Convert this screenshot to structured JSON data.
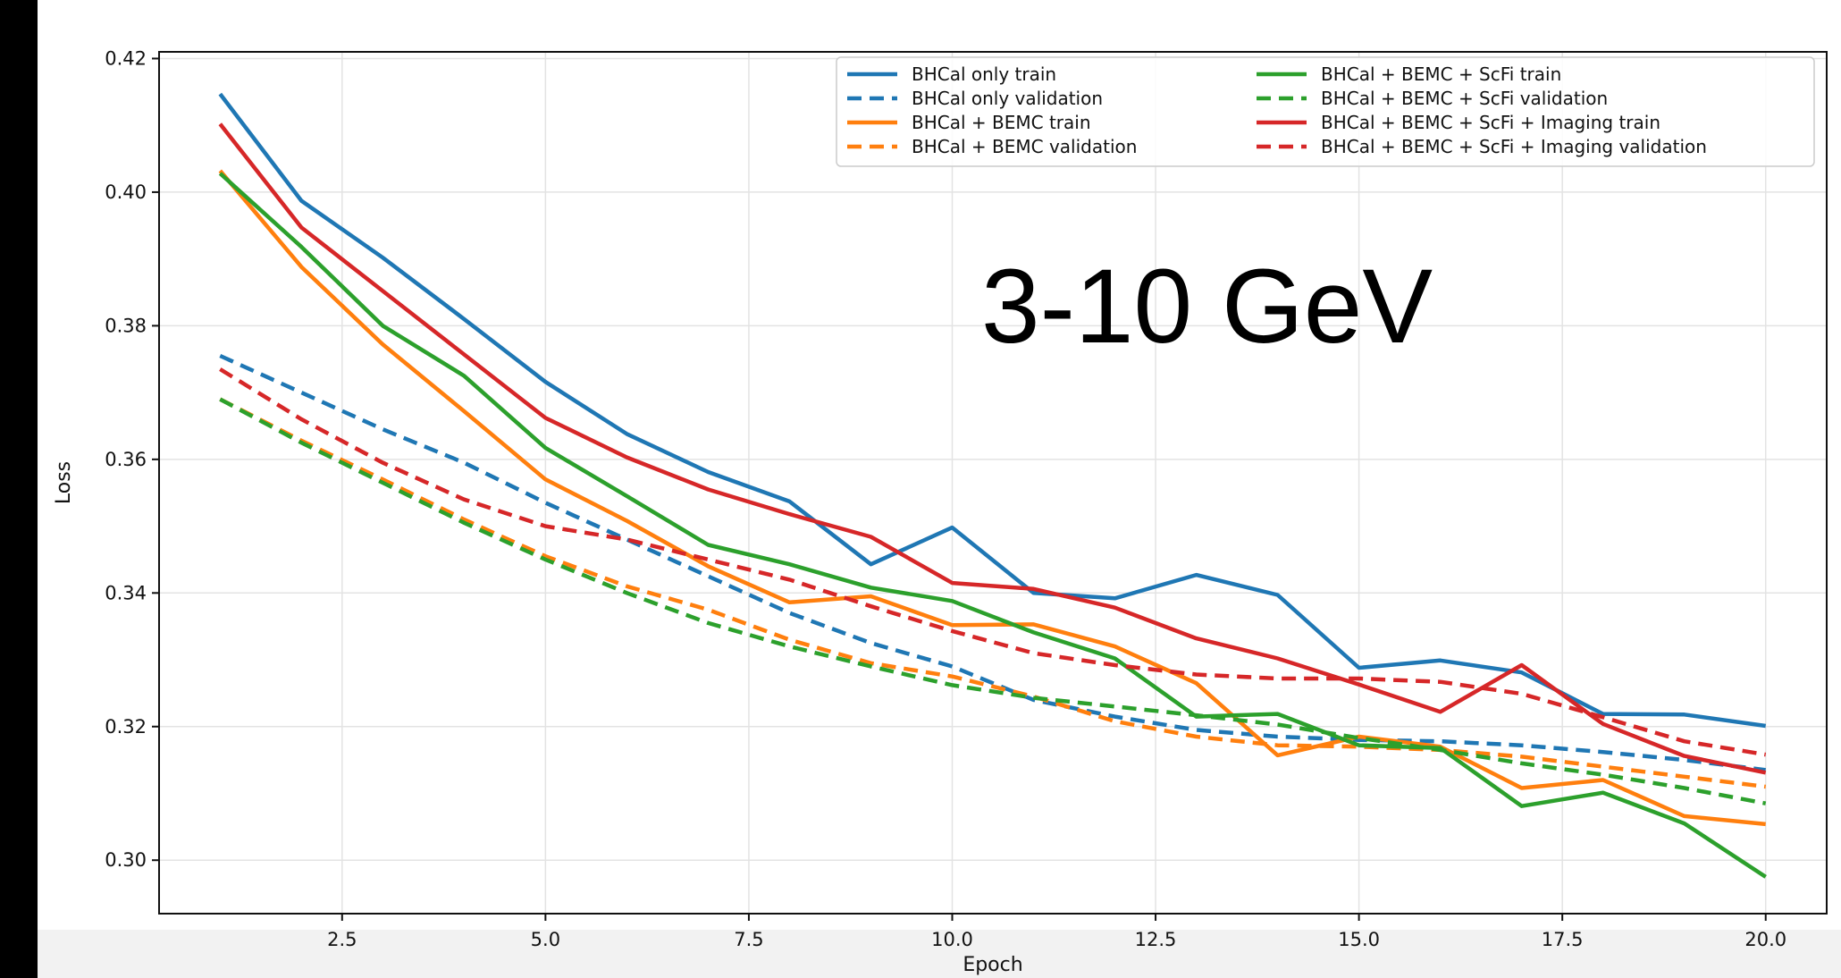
{
  "chart_data": {
    "type": "line",
    "xlabel": "Epoch",
    "ylabel": "Loss",
    "annotation": "3-10 GeV",
    "xlim": [
      0.25,
      20.75
    ],
    "ylim": [
      0.292,
      0.421
    ],
    "xticks": [
      2.5,
      5.0,
      7.5,
      10.0,
      12.5,
      15.0,
      17.5,
      20.0
    ],
    "yticks": [
      0.3,
      0.32,
      0.34,
      0.36,
      0.38,
      0.4,
      0.42
    ],
    "grid": true,
    "legend_position": "top-right",
    "x": [
      1,
      2,
      3,
      4,
      5,
      6,
      7,
      8,
      9,
      10,
      11,
      12,
      13,
      14,
      15,
      16,
      17,
      18,
      19,
      20
    ],
    "series": [
      {
        "name": "BHCal only train",
        "color": "#1f77b4",
        "style": "solid",
        "values": [
          0.4147,
          0.3987,
          0.3902,
          0.381,
          0.3716,
          0.3638,
          0.3581,
          0.3537,
          0.3443,
          0.3498,
          0.34,
          0.3392,
          0.3427,
          0.3397,
          0.3288,
          0.3299,
          0.3281,
          0.3219,
          0.3218,
          0.3201
        ]
      },
      {
        "name": "BHCal only validation",
        "color": "#1f77b4",
        "style": "dashed",
        "values": [
          0.3755,
          0.37,
          0.3645,
          0.3595,
          0.3535,
          0.348,
          0.3425,
          0.337,
          0.3325,
          0.329,
          0.324,
          0.3215,
          0.3195,
          0.3185,
          0.318,
          0.3178,
          0.3172,
          0.3162,
          0.315,
          0.3135
        ]
      },
      {
        "name": "BHCal + BEMC train",
        "color": "#ff7f0e",
        "style": "solid",
        "values": [
          0.4032,
          0.3888,
          0.3772,
          0.3672,
          0.357,
          0.3508,
          0.344,
          0.3386,
          0.3395,
          0.3352,
          0.3353,
          0.332,
          0.3265,
          0.3157,
          0.3185,
          0.317,
          0.3108,
          0.312,
          0.3066,
          0.3054
        ]
      },
      {
        "name": "BHCal + BEMC validation",
        "color": "#ff7f0e",
        "style": "dashed",
        "values": [
          0.369,
          0.3628,
          0.357,
          0.351,
          0.3455,
          0.341,
          0.3375,
          0.333,
          0.3295,
          0.3275,
          0.3245,
          0.3208,
          0.3185,
          0.3172,
          0.317,
          0.3165,
          0.3155,
          0.314,
          0.3125,
          0.311
        ]
      },
      {
        "name": "BHCal + BEMC + ScFi train",
        "color": "#2ca02c",
        "style": "solid",
        "values": [
          0.4028,
          0.3918,
          0.38,
          0.3725,
          0.3617,
          0.3545,
          0.3472,
          0.3443,
          0.3408,
          0.3388,
          0.3341,
          0.3302,
          0.3215,
          0.3219,
          0.3172,
          0.3168,
          0.3081,
          0.3101,
          0.3055,
          0.2975
        ]
      },
      {
        "name": "BHCal + BEMC + ScFi validation",
        "color": "#2ca02c",
        "style": "dashed",
        "values": [
          0.369,
          0.3625,
          0.3565,
          0.3505,
          0.345,
          0.34,
          0.3355,
          0.332,
          0.329,
          0.3262,
          0.3243,
          0.323,
          0.3217,
          0.3203,
          0.3183,
          0.3165,
          0.3145,
          0.3128,
          0.3108,
          0.3085
        ]
      },
      {
        "name": "BHCal + BEMC + ScFi + Imaging train",
        "color": "#d62728",
        "style": "solid",
        "values": [
          0.4102,
          0.3947,
          0.3852,
          0.3757,
          0.3662,
          0.3603,
          0.3555,
          0.3518,
          0.3484,
          0.3415,
          0.3406,
          0.3378,
          0.3332,
          0.3302,
          0.3263,
          0.3222,
          0.3292,
          0.3204,
          0.3156,
          0.3131
        ]
      },
      {
        "name": "BHCal + BEMC + ScFi + Imaging validation",
        "color": "#d62728",
        "style": "dashed",
        "values": [
          0.3735,
          0.366,
          0.3595,
          0.354,
          0.35,
          0.348,
          0.345,
          0.342,
          0.338,
          0.3343,
          0.331,
          0.3292,
          0.3278,
          0.3272,
          0.3272,
          0.3267,
          0.3249,
          0.3214,
          0.3178,
          0.3158
        ]
      }
    ]
  }
}
